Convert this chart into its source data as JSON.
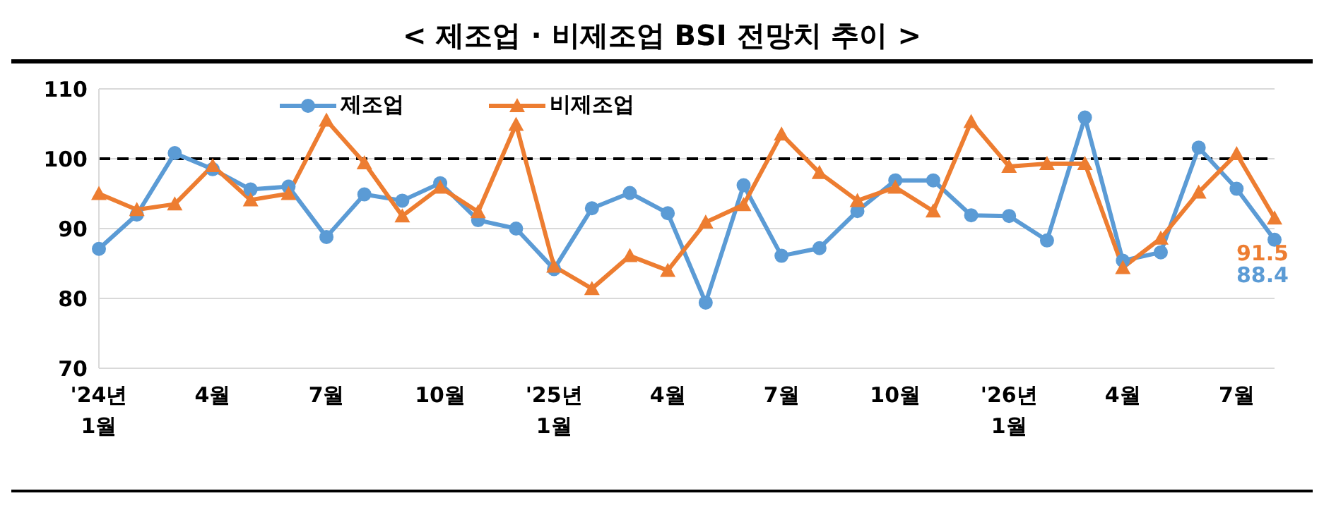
{
  "chart_data": {
    "type": "line",
    "title": "< 제조업 · 비제조업 BSI 전망치 추이 >",
    "categories": [
      "'24년\n1월",
      null,
      null,
      "4월",
      null,
      null,
      "7월",
      null,
      null,
      "10월",
      null,
      null,
      "'25년\n1월",
      null,
      null,
      "4월",
      null,
      null,
      "7월",
      null,
      null,
      "10월",
      null,
      null,
      "'26년\n1월",
      null,
      null,
      "4월",
      null,
      null,
      "7월",
      null
    ],
    "series": [
      {
        "name": "제조업",
        "color": "#5b9bd5",
        "marker": "circle",
        "values": [
          87.1,
          92.0,
          100.8,
          98.5,
          95.6,
          96.0,
          88.8,
          94.9,
          94.0,
          96.5,
          91.2,
          90.0,
          84.2,
          92.9,
          95.1,
          92.2,
          79.4,
          96.2,
          86.1,
          87.2,
          92.5,
          96.9,
          96.9,
          91.9,
          91.8,
          88.3,
          105.9,
          85.4,
          86.6,
          101.6,
          95.7,
          88.4
        ],
        "value_labels": [
          null,
          null,
          null,
          null,
          null,
          null,
          null,
          null,
          null,
          null,
          null,
          null,
          null,
          null,
          null,
          null,
          null,
          null,
          null,
          null,
          null,
          null,
          null,
          null,
          null,
          null,
          null,
          null,
          null,
          null,
          null,
          "88.4"
        ]
      },
      {
        "name": "비제조업",
        "color": "#ed7d31",
        "marker": "triangle",
        "values": [
          95.0,
          92.7,
          93.5,
          99.0,
          94.1,
          95.0,
          105.5,
          99.4,
          91.8,
          95.9,
          92.4,
          104.9,
          84.6,
          81.4,
          86.1,
          84.0,
          90.9,
          93.4,
          103.5,
          98.0,
          94.0,
          95.9,
          92.5,
          105.3,
          98.9,
          99.3,
          99.3,
          84.4,
          88.6,
          95.2,
          100.7,
          91.5
        ],
        "value_labels": [
          null,
          null,
          null,
          null,
          null,
          null,
          null,
          null,
          null,
          null,
          null,
          null,
          null,
          null,
          null,
          null,
          null,
          null,
          null,
          null,
          null,
          null,
          null,
          null,
          null,
          null,
          null,
          null,
          null,
          null,
          null,
          "91.5"
        ]
      }
    ],
    "ylim": [
      70,
      110
    ],
    "yticks": [
      70,
      80,
      90,
      100,
      110
    ],
    "grid": "y",
    "legend": "top",
    "line_style": "solid",
    "ref_lines": [
      {
        "axis": "y",
        "value": 100,
        "color": "#000000",
        "line_style": "dashed"
      }
    ]
  }
}
